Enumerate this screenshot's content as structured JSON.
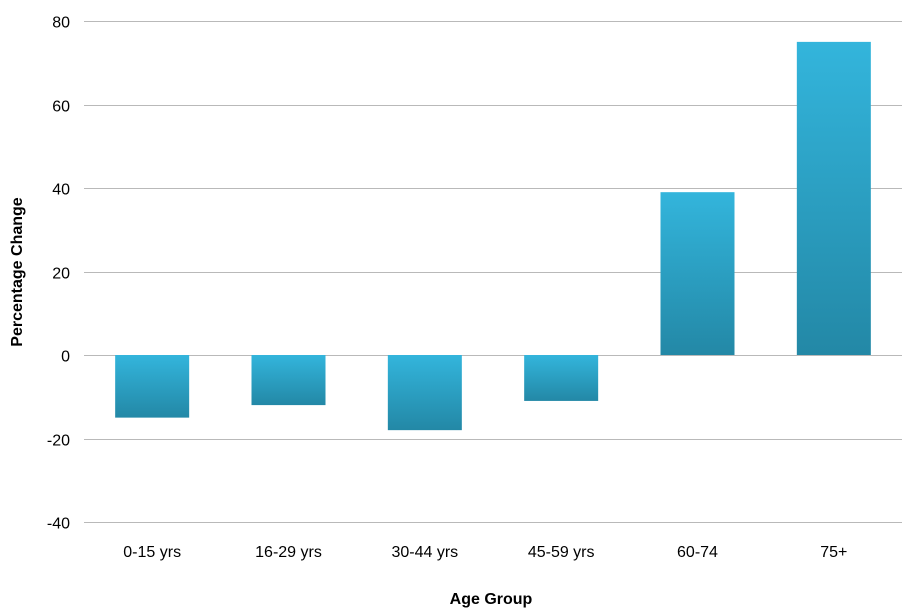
{
  "chart_data": {
    "type": "bar",
    "title": "",
    "xlabel": "Age Group",
    "ylabel": "Percentage Change",
    "categories": [
      "0-15 yrs",
      "16-29 yrs",
      "30-44 yrs",
      "45-59 yrs",
      "60-74",
      "75+"
    ],
    "values": [
      -15,
      -12,
      -18,
      -11,
      39,
      75
    ],
    "ylim": [
      -40,
      80
    ],
    "yticks": [
      -40,
      -20,
      0,
      20,
      40,
      60,
      80
    ],
    "grid": true,
    "legend": "none",
    "colors": {
      "bar_top": "#33b5dc",
      "bar_bottom": "#2388a6",
      "grid": "#b9b9b9"
    }
  }
}
